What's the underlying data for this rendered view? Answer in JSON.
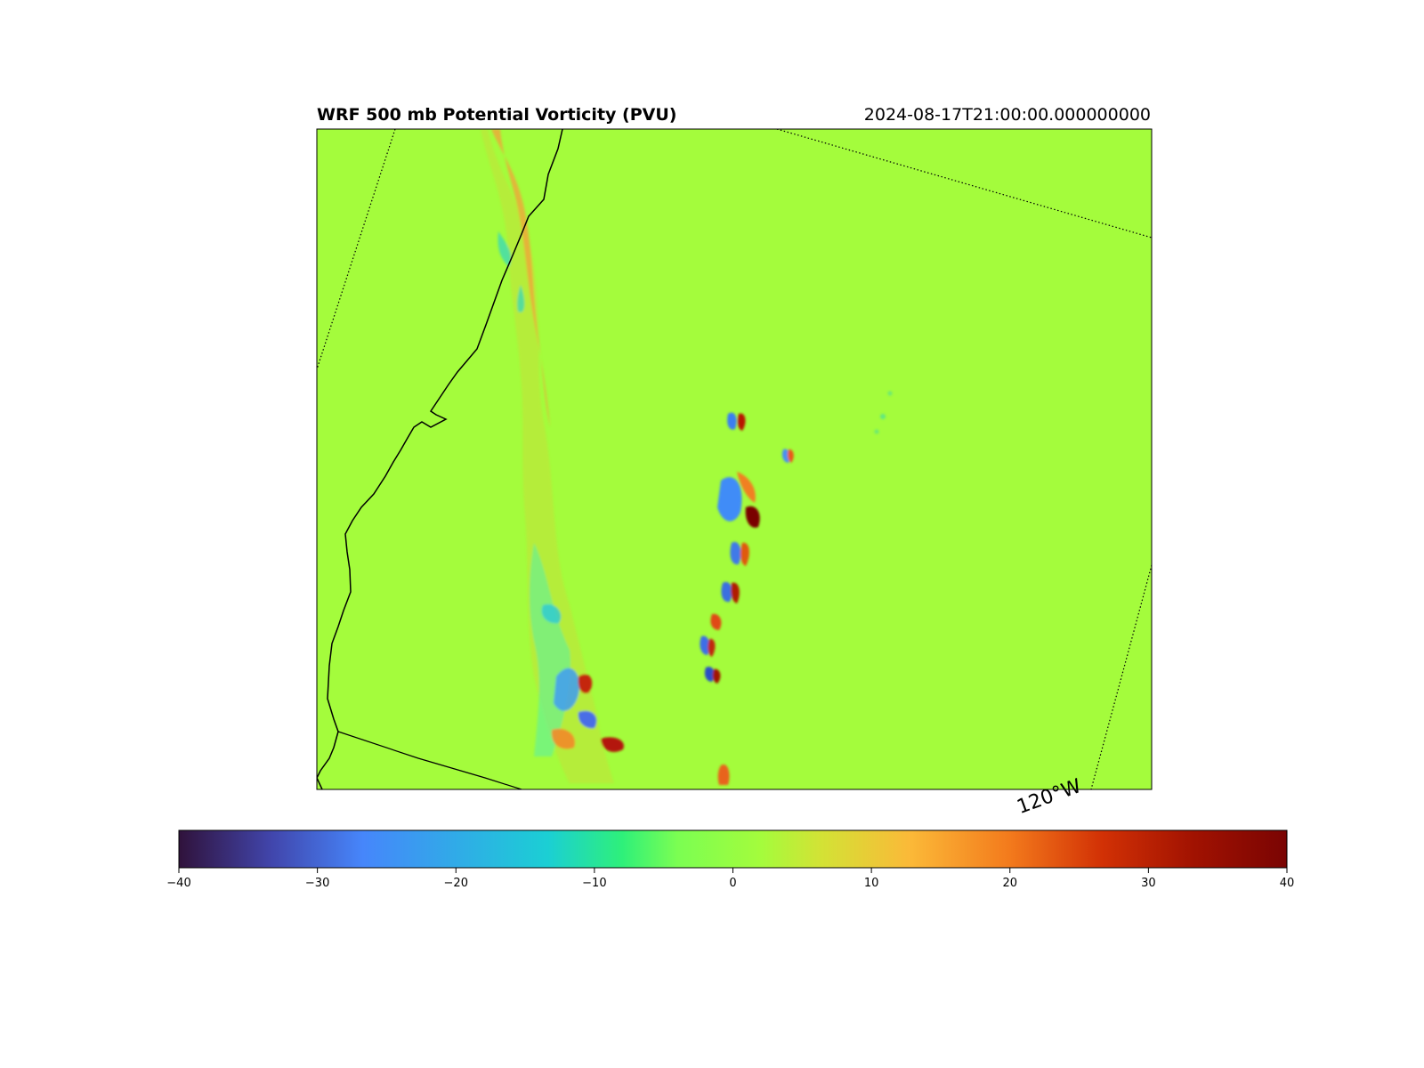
{
  "map": {
    "title": "WRF 500 mb Potential Vorticity (PVU)",
    "valid_time": "2024-08-17T21:00:00.000000000",
    "field_name": "Potential Vorticity",
    "units": "PVU",
    "level": "500 mb",
    "background_value": 2,
    "gridline_label": "120°W",
    "colormap": "turbo",
    "colormap_stops": [
      "#30123b",
      "#4145ab",
      "#4686fb",
      "#1bcfd4",
      "#2ef07a",
      "#7bfe52",
      "#a4fc3c",
      "#d3e235",
      "#fbb938",
      "#f37a1c",
      "#d23105",
      "#a11201",
      "#7a0403"
    ],
    "colorbar": {
      "min": -40,
      "max": 40,
      "ticks": [
        "−40",
        "−30",
        "−20",
        "−10",
        "0",
        "10",
        "20",
        "30",
        "40"
      ],
      "tick_values": [
        -40,
        -30,
        -20,
        -10,
        0,
        10,
        20,
        30,
        40
      ]
    },
    "features": {
      "coastline": "Pacific coastline",
      "state_border": "California–Nevada border",
      "grid_lines": "dotted longitude/latitude lines"
    }
  }
}
